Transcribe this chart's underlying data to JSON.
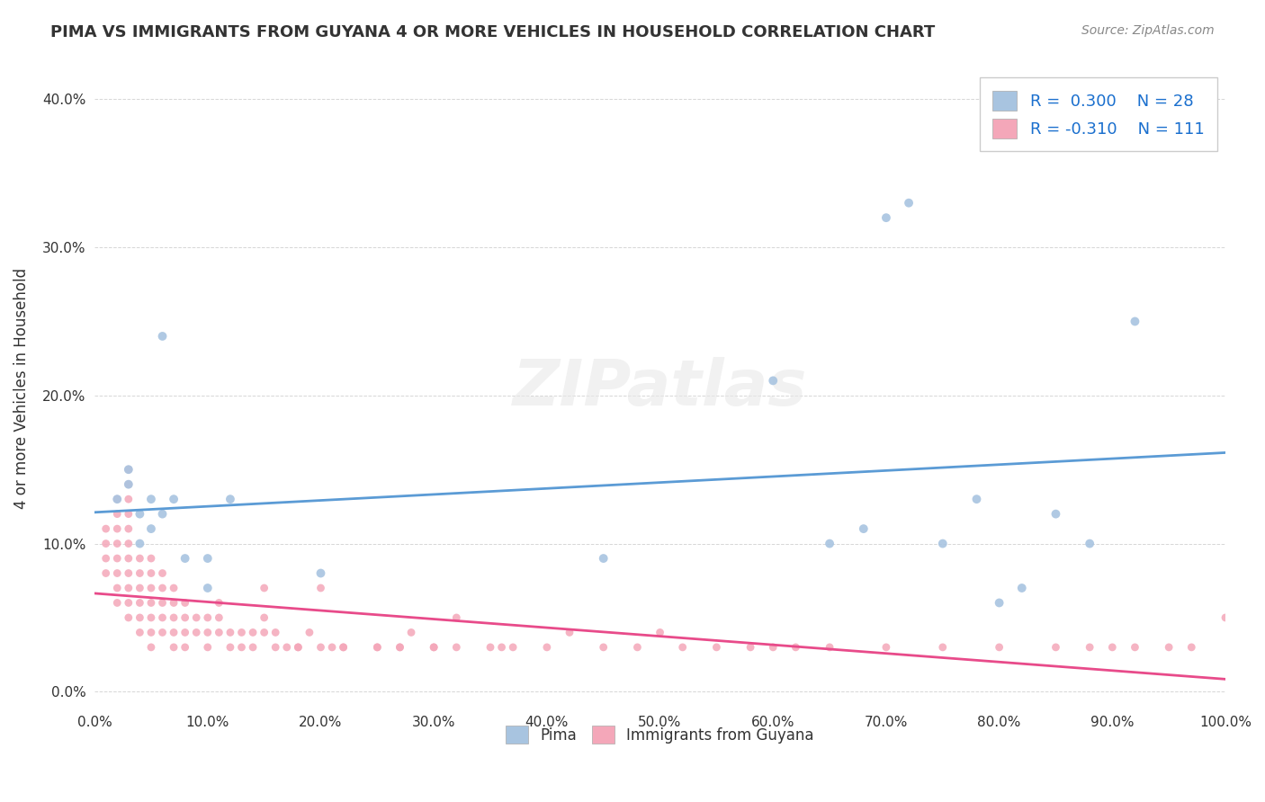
{
  "title": "PIMA VS IMMIGRANTS FROM GUYANA 4 OR MORE VEHICLES IN HOUSEHOLD CORRELATION CHART",
  "source": "Source: ZipAtlas.com",
  "xlabel": "",
  "ylabel": "4 or more Vehicles in Household",
  "xlim": [
    0,
    100
  ],
  "ylim": [
    -1,
    42
  ],
  "x_ticks": [
    0,
    10,
    20,
    30,
    40,
    50,
    60,
    70,
    80,
    90,
    100
  ],
  "y_ticks": [
    0,
    10,
    20,
    30,
    40
  ],
  "pima_color": "#a8c4e0",
  "pima_line_color": "#5b9bd5",
  "guyana_color": "#f4a7b9",
  "guyana_line_color": "#e84b8a",
  "pima_R": 0.3,
  "pima_N": 28,
  "guyana_R": -0.31,
  "guyana_N": 111,
  "watermark": "ZIPatlas",
  "pima_scatter_x": [
    2,
    3,
    3,
    4,
    4,
    5,
    5,
    6,
    6,
    7,
    8,
    10,
    10,
    12,
    20,
    45,
    60,
    65,
    68,
    70,
    72,
    75,
    78,
    80,
    82,
    85,
    88,
    92
  ],
  "pima_scatter_y": [
    13,
    15,
    14,
    12,
    10,
    13,
    11,
    12,
    24,
    13,
    9,
    9,
    7,
    13,
    8,
    9,
    21,
    10,
    11,
    32,
    33,
    10,
    13,
    6,
    7,
    12,
    10,
    25
  ],
  "guyana_scatter_x": [
    1,
    1,
    1,
    1,
    2,
    2,
    2,
    2,
    2,
    2,
    2,
    2,
    3,
    3,
    3,
    3,
    3,
    3,
    3,
    3,
    3,
    3,
    3,
    4,
    4,
    4,
    4,
    4,
    4,
    5,
    5,
    5,
    5,
    5,
    5,
    5,
    6,
    6,
    6,
    6,
    6,
    7,
    7,
    7,
    7,
    7,
    8,
    8,
    8,
    8,
    9,
    9,
    10,
    10,
    10,
    11,
    11,
    11,
    12,
    12,
    13,
    13,
    14,
    14,
    15,
    15,
    16,
    16,
    17,
    18,
    19,
    20,
    21,
    22,
    25,
    27,
    28,
    30,
    32,
    35,
    36,
    37,
    40,
    42,
    45,
    48,
    50,
    52,
    55,
    58,
    60,
    62,
    65,
    70,
    75,
    80,
    85,
    88,
    90,
    92,
    95,
    97,
    100,
    20,
    25,
    30,
    15,
    18,
    22,
    27,
    32
  ],
  "guyana_scatter_y": [
    8,
    9,
    10,
    11,
    6,
    7,
    8,
    9,
    10,
    11,
    12,
    13,
    5,
    6,
    7,
    8,
    9,
    10,
    11,
    12,
    13,
    14,
    15,
    4,
    5,
    6,
    7,
    8,
    9,
    3,
    4,
    5,
    6,
    7,
    8,
    9,
    4,
    5,
    6,
    7,
    8,
    3,
    4,
    5,
    6,
    7,
    3,
    4,
    5,
    6,
    4,
    5,
    3,
    4,
    5,
    4,
    5,
    6,
    3,
    4,
    3,
    4,
    3,
    4,
    4,
    5,
    3,
    4,
    3,
    3,
    4,
    3,
    3,
    3,
    3,
    3,
    4,
    3,
    3,
    3,
    3,
    3,
    3,
    4,
    3,
    3,
    4,
    3,
    3,
    3,
    3,
    3,
    3,
    3,
    3,
    3,
    3,
    3,
    3,
    3,
    3,
    3,
    5,
    7,
    3,
    3,
    7,
    3,
    3,
    3,
    5
  ]
}
